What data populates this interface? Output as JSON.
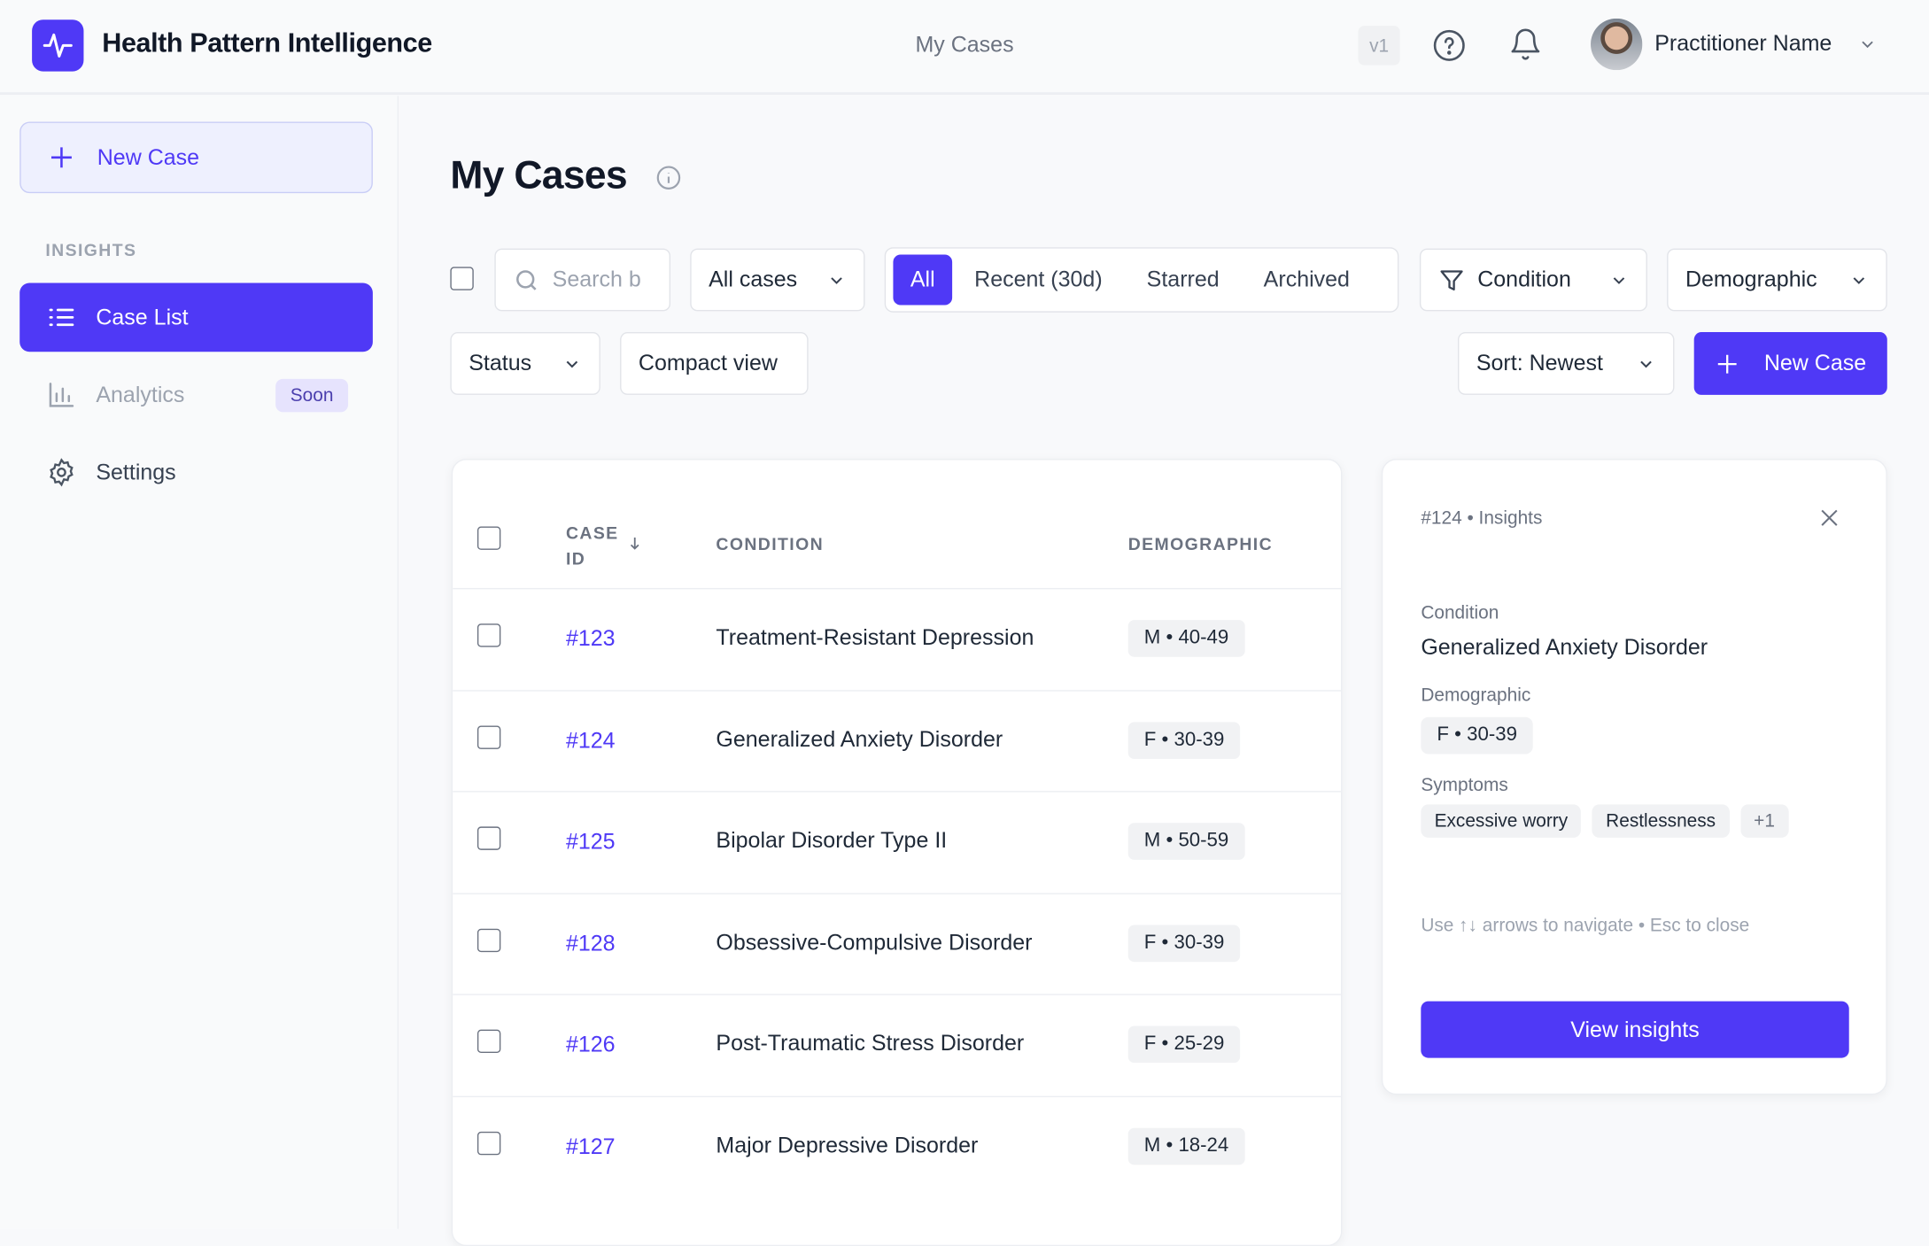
{
  "header": {
    "app_title": "Health Pattern Intelligence",
    "center_title": "My Cases",
    "version": "v1",
    "user_name": "Practitioner Name",
    "icons": [
      "activity-icon",
      "help-icon",
      "bell-icon",
      "chevron-down-icon"
    ]
  },
  "sidebar": {
    "new_case": "New Case",
    "section": "INSIGHTS",
    "items": [
      {
        "label": "Case List",
        "icon": "list-icon",
        "active": true
      },
      {
        "label": "Analytics",
        "icon": "bar-chart-icon",
        "badge": "Soon"
      },
      {
        "label": "Settings",
        "icon": "gear-icon"
      }
    ]
  },
  "main": {
    "title": "My Cases",
    "search_placeholder": "Search b",
    "scope_select": "All cases",
    "tabs": [
      "All",
      "Recent (30d)",
      "Starred",
      "Archived"
    ],
    "active_tab": "All",
    "condition_filter": "Condition",
    "demographic_filter": "Demographic",
    "status_filter": "Status",
    "compact_view": "Compact view",
    "sort": "Sort: Newest",
    "new_case": "New Case",
    "table": {
      "headers": {
        "case_id_1": "CASE",
        "case_id_2": "ID",
        "condition": "CONDITION",
        "demographic": "DEMOGRAPHIC"
      },
      "rows": [
        {
          "id": "#123",
          "condition": "Treatment-Resistant Depression",
          "demographic": "M • 40-49"
        },
        {
          "id": "#124",
          "condition": "Generalized Anxiety Disorder",
          "demographic": "F • 30-39"
        },
        {
          "id": "#125",
          "condition": "Bipolar Disorder Type II",
          "demographic": "M • 50-59"
        },
        {
          "id": "#128",
          "condition": "Obsessive-Compulsive Disorder",
          "demographic": "F • 30-39"
        },
        {
          "id": "#126",
          "condition": "Post-Traumatic Stress Disorder",
          "demographic": "F • 25-29"
        },
        {
          "id": "#127",
          "condition": "Major Depressive Disorder",
          "demographic": "M • 18-24"
        }
      ]
    }
  },
  "panel": {
    "title": "#124 • Insights",
    "condition_label": "Condition",
    "condition": "Generalized Anxiety Disorder",
    "demographic_label": "Demographic",
    "demographic": "F • 30-39",
    "symptoms_label": "Symptoms",
    "symptoms": [
      "Excessive worry",
      "Restlessness",
      "+1"
    ],
    "hint": "Use ↑↓ arrows to navigate • Esc to close",
    "cta": "View insights"
  },
  "colors": {
    "accent": "#4f39f6",
    "accent_soft": "#eef0fe"
  }
}
